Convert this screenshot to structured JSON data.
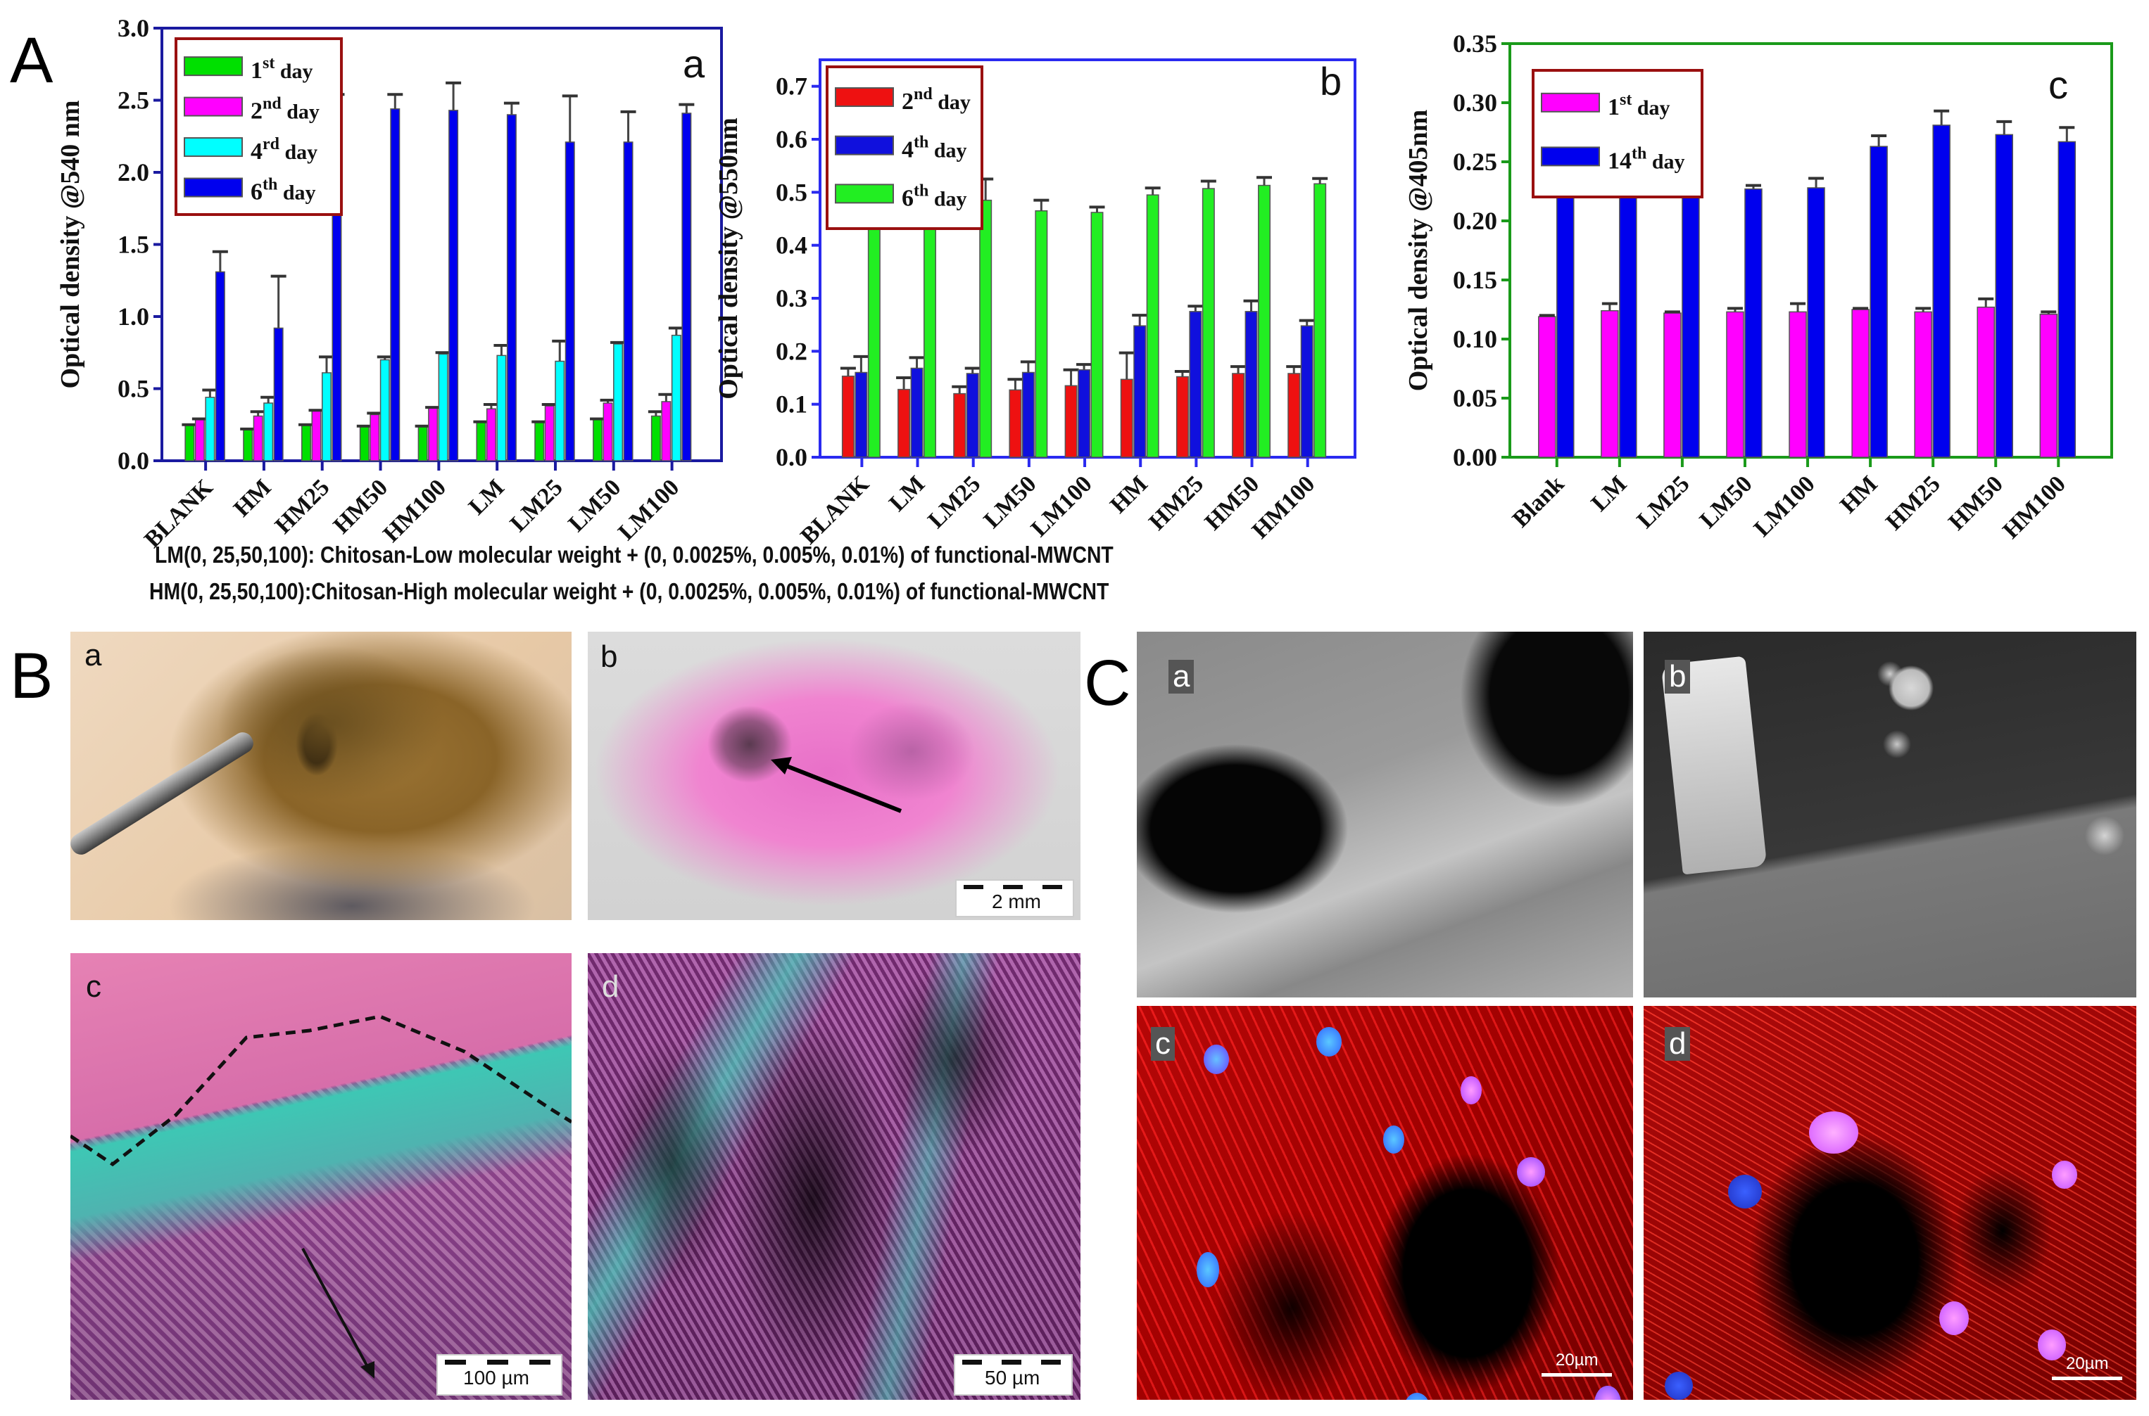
{
  "panels": {
    "A": {
      "letter": "A"
    },
    "B": {
      "letter": "B",
      "sub": {
        "a": "a",
        "b": "b",
        "c": "c",
        "d": "d"
      },
      "scalebars": {
        "b": "2 mm",
        "c": "100 µm",
        "d": "50 µm"
      }
    },
    "C": {
      "letter": "C",
      "sub": {
        "a": "a",
        "b": "b",
        "c": "c",
        "d": "d"
      },
      "scalebars": {
        "c": "20µm",
        "d": "20µm"
      }
    }
  },
  "captions": {
    "lm": "LM(0, 25,50,100): Chitosan-Low molecular weight + (0, 0.0025%, 0.005%, 0.01%) of functional-MWCNT",
    "hm": "HM(0, 25,50,100):Chitosan-High molecular weight + (0, 0.0025%, 0.005%, 0.01%) of functional-MWCNT"
  },
  "chart_data": [
    {
      "id": "a",
      "panel_label": "a",
      "type": "bar",
      "title": "",
      "xlabel": "",
      "ylabel": "Optical density @540 nm",
      "ylim": [
        0,
        3.0
      ],
      "yticks": [
        0.0,
        0.5,
        1.0,
        1.5,
        2.0,
        2.5,
        3.0
      ],
      "ytick_labels": [
        "0.0",
        "0.5",
        "1.0",
        "1.5",
        "2.0",
        "2.5",
        "3.0"
      ],
      "grid": false,
      "legend_position": "upper-left",
      "frame_color": "#1a1aa0",
      "categories": [
        "BLANK",
        "HM",
        "HM25",
        "HM50",
        "HM100",
        "LM",
        "LM25",
        "LM50",
        "LM100"
      ],
      "series": [
        {
          "name": "1st day",
          "base": "1",
          "sup": "st",
          "suffix": " day",
          "color": "#00e000",
          "values": [
            0.25,
            0.22,
            0.25,
            0.24,
            0.24,
            0.27,
            0.27,
            0.29,
            0.31
          ],
          "errors": [
            0.0,
            0.0,
            0.0,
            0.0,
            0.0,
            0.0,
            0.0,
            0.0,
            0.03
          ]
        },
        {
          "name": "2nd day",
          "base": "2",
          "sup": "nd",
          "suffix": " day",
          "color": "#ff00ff",
          "values": [
            0.29,
            0.31,
            0.35,
            0.32,
            0.37,
            0.36,
            0.38,
            0.4,
            0.41
          ],
          "errors": [
            0.0,
            0.03,
            0.0,
            0.01,
            0.0,
            0.03,
            0.01,
            0.02,
            0.05
          ]
        },
        {
          "name": "4rd day",
          "base": "4",
          "sup": "rd",
          "suffix": " day",
          "color": "#00ffff",
          "values": [
            0.44,
            0.4,
            0.61,
            0.7,
            0.74,
            0.73,
            0.69,
            0.81,
            0.87
          ],
          "errors": [
            0.05,
            0.04,
            0.11,
            0.02,
            0.01,
            0.07,
            0.14,
            0.01,
            0.05
          ]
        },
        {
          "name": "6th day",
          "base": "6",
          "sup": "th",
          "suffix": " day",
          "color": "#0000ee",
          "values": [
            1.31,
            0.92,
            2.4,
            2.44,
            2.43,
            2.4,
            2.21,
            2.21,
            2.41
          ],
          "errors": [
            0.14,
            0.36,
            0.14,
            0.1,
            0.19,
            0.08,
            0.32,
            0.21,
            0.06
          ]
        }
      ]
    },
    {
      "id": "b",
      "panel_label": "b",
      "type": "bar",
      "title": "",
      "xlabel": "",
      "ylabel": "Optical density @550nm",
      "ylim": [
        0,
        0.75
      ],
      "yticks": [
        0.0,
        0.1,
        0.2,
        0.3,
        0.4,
        0.5,
        0.6,
        0.7
      ],
      "ytick_labels": [
        "0.0",
        "0.1",
        "0.2",
        "0.3",
        "0.4",
        "0.5",
        "0.6",
        "0.7"
      ],
      "grid": false,
      "legend_position": "upper-left",
      "frame_color": "#2a2af0",
      "categories": [
        "BLANK",
        "LM",
        "LM25",
        "LM50",
        "LM100",
        "HM",
        "HM25",
        "HM50",
        "HM100"
      ],
      "series": [
        {
          "name": "2nd day",
          "base": "2",
          "sup": "nd",
          "suffix": " day",
          "color": "#ee1111",
          "values": [
            0.153,
            0.128,
            0.12,
            0.127,
            0.135,
            0.147,
            0.152,
            0.158,
            0.158
          ],
          "errors": [
            0.015,
            0.022,
            0.013,
            0.02,
            0.03,
            0.05,
            0.01,
            0.013,
            0.013
          ]
        },
        {
          "name": "4th day",
          "base": "4",
          "sup": "th",
          "suffix": " day",
          "color": "#1010dd",
          "values": [
            0.16,
            0.168,
            0.158,
            0.16,
            0.165,
            0.248,
            0.275,
            0.275,
            0.248
          ],
          "errors": [
            0.03,
            0.02,
            0.01,
            0.02,
            0.01,
            0.02,
            0.01,
            0.02,
            0.01
          ]
        },
        {
          "name": "6th day",
          "base": "6",
          "sup": "th",
          "suffix": " day",
          "color": "#22ee22",
          "values": [
            0.47,
            0.443,
            0.485,
            0.465,
            0.462,
            0.495,
            0.507,
            0.513,
            0.516
          ],
          "errors": [
            0.02,
            0.03,
            0.04,
            0.02,
            0.01,
            0.013,
            0.014,
            0.015,
            0.01
          ]
        }
      ]
    },
    {
      "id": "c",
      "panel_label": "c",
      "type": "bar",
      "title": "",
      "xlabel": "",
      "ylabel": "Optical density @405nm",
      "ylim": [
        0,
        0.35
      ],
      "yticks": [
        0.0,
        0.05,
        0.1,
        0.15,
        0.2,
        0.25,
        0.3,
        0.35
      ],
      "ytick_labels": [
        "0.00",
        "0.05",
        "0.10",
        "0.15",
        "0.20",
        "0.25",
        "0.30",
        "0.35"
      ],
      "grid": false,
      "legend_position": "upper-left",
      "frame_color": "#1a9a1a",
      "categories": [
        "Blank",
        "LM",
        "LM25",
        "LM50",
        "LM100",
        "HM",
        "HM25",
        "HM50",
        "HM100"
      ],
      "series": [
        {
          "name": "1st day",
          "base": "1",
          "sup": "st",
          "suffix": " day",
          "color": "#ff00ff",
          "values": [
            0.119,
            0.124,
            0.122,
            0.123,
            0.123,
            0.125,
            0.123,
            0.127,
            0.121
          ],
          "errors": [
            0.001,
            0.006,
            0.001,
            0.003,
            0.007,
            0.001,
            0.003,
            0.007,
            0.002
          ]
        },
        {
          "name": "14th day",
          "base": "14",
          "sup": "th",
          "suffix": " day",
          "color": "#0000ee",
          "values": [
            0.223,
            0.236,
            0.236,
            0.227,
            0.228,
            0.263,
            0.281,
            0.273,
            0.267
          ],
          "errors": [
            0.004,
            0.008,
            0.007,
            0.003,
            0.008,
            0.009,
            0.012,
            0.011,
            0.012
          ]
        }
      ]
    }
  ]
}
